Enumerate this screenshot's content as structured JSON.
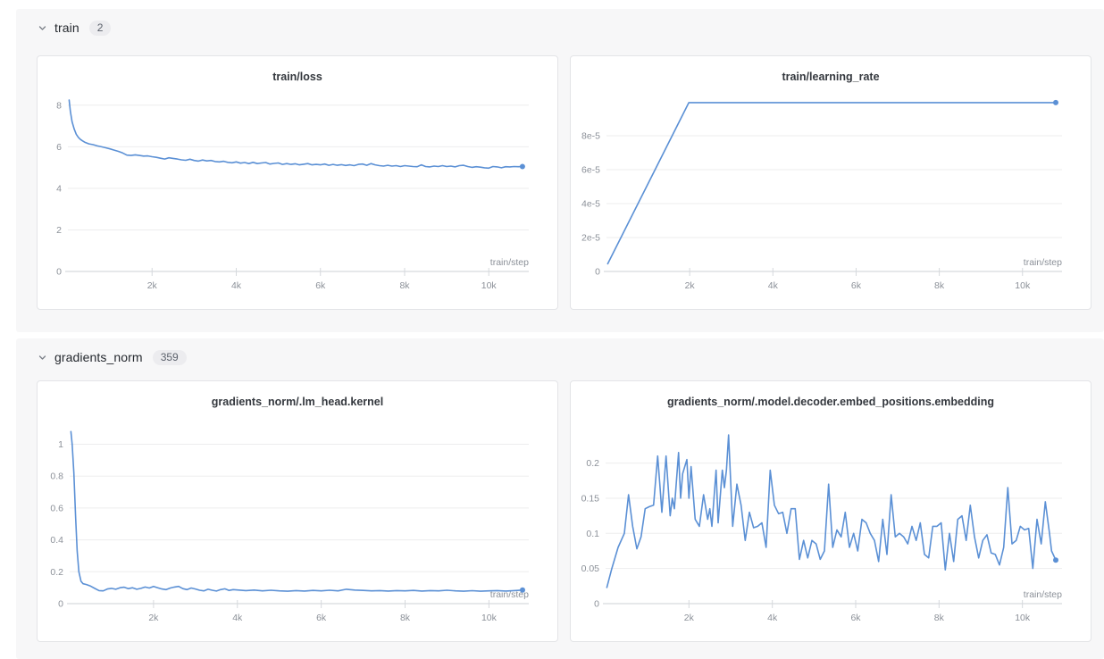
{
  "colors": {
    "line": "#5b90d5",
    "grid": "#ededee",
    "axis": "#ccd0d5",
    "tick": "#d6d9dd",
    "tick_label": "#8b9098",
    "title": "#34383e",
    "panel_bg": "#f7f7f8",
    "card_border": "#e3e4e7",
    "badge_bg": "#ececef",
    "badge_text": "#5b616b",
    "header_text": "#24282e"
  },
  "sections": [
    {
      "label": "train",
      "count": "2",
      "chevron": "chevron-down",
      "charts": [
        0,
        1
      ]
    },
    {
      "label": "gradients_norm",
      "count": "359",
      "chevron": "chevron-down",
      "charts": [
        2,
        3
      ]
    }
  ],
  "chart_data": [
    {
      "type": "line",
      "title": "train/loss",
      "xlabel": "train/step",
      "x_units": "thousands of steps",
      "xlim": [
        0,
        10.95
      ],
      "ylim": [
        0,
        8.55
      ],
      "x_tick_values": [
        2,
        4,
        6,
        8,
        10
      ],
      "x_tick_labels": [
        "2k",
        "4k",
        "6k",
        "8k",
        "10k"
      ],
      "y_tick_values": [
        0,
        2,
        4,
        6,
        8
      ],
      "y_tick_labels": [
        "0",
        "2",
        "4",
        "6",
        "8"
      ],
      "grid": true,
      "end_dot": true,
      "points": [
        [
          0.03,
          8.25
        ],
        [
          0.06,
          7.7
        ],
        [
          0.1,
          7.2
        ],
        [
          0.15,
          6.85
        ],
        [
          0.2,
          6.6
        ],
        [
          0.25,
          6.45
        ],
        [
          0.3,
          6.35
        ],
        [
          0.35,
          6.28
        ],
        [
          0.4,
          6.22
        ],
        [
          0.5,
          6.14
        ],
        [
          0.6,
          6.1
        ],
        [
          0.7,
          6.04
        ],
        [
          0.8,
          6.0
        ],
        [
          0.9,
          5.95
        ],
        [
          1.0,
          5.9
        ],
        [
          1.1,
          5.84
        ],
        [
          1.2,
          5.78
        ],
        [
          1.3,
          5.7
        ],
        [
          1.4,
          5.6
        ],
        [
          1.5,
          5.58
        ],
        [
          1.6,
          5.61
        ],
        [
          1.7,
          5.58
        ],
        [
          1.8,
          5.55
        ],
        [
          1.9,
          5.56
        ],
        [
          2.0,
          5.52
        ],
        [
          2.1,
          5.49
        ],
        [
          2.2,
          5.45
        ],
        [
          2.3,
          5.41
        ],
        [
          2.4,
          5.47
        ],
        [
          2.5,
          5.44
        ],
        [
          2.6,
          5.41
        ],
        [
          2.7,
          5.37
        ],
        [
          2.8,
          5.35
        ],
        [
          2.9,
          5.4
        ],
        [
          3.0,
          5.34
        ],
        [
          3.1,
          5.31
        ],
        [
          3.2,
          5.36
        ],
        [
          3.3,
          5.32
        ],
        [
          3.4,
          5.34
        ],
        [
          3.5,
          5.29
        ],
        [
          3.6,
          5.27
        ],
        [
          3.7,
          5.3
        ],
        [
          3.8,
          5.25
        ],
        [
          3.9,
          5.23
        ],
        [
          4.0,
          5.27
        ],
        [
          4.1,
          5.21
        ],
        [
          4.2,
          5.24
        ],
        [
          4.3,
          5.19
        ],
        [
          4.4,
          5.25
        ],
        [
          4.5,
          5.19
        ],
        [
          4.6,
          5.22
        ],
        [
          4.7,
          5.24
        ],
        [
          4.8,
          5.17
        ],
        [
          4.9,
          5.2
        ],
        [
          5.0,
          5.22
        ],
        [
          5.1,
          5.15
        ],
        [
          5.2,
          5.19
        ],
        [
          5.3,
          5.15
        ],
        [
          5.4,
          5.18
        ],
        [
          5.5,
          5.13
        ],
        [
          5.6,
          5.16
        ],
        [
          5.7,
          5.19
        ],
        [
          5.8,
          5.13
        ],
        [
          5.9,
          5.15
        ],
        [
          6.0,
          5.13
        ],
        [
          6.1,
          5.17
        ],
        [
          6.2,
          5.11
        ],
        [
          6.3,
          5.15
        ],
        [
          6.4,
          5.11
        ],
        [
          6.5,
          5.14
        ],
        [
          6.6,
          5.1
        ],
        [
          6.7,
          5.13
        ],
        [
          6.8,
          5.09
        ],
        [
          6.9,
          5.15
        ],
        [
          7.0,
          5.17
        ],
        [
          7.1,
          5.11
        ],
        [
          7.2,
          5.19
        ],
        [
          7.3,
          5.13
        ],
        [
          7.4,
          5.09
        ],
        [
          7.5,
          5.07
        ],
        [
          7.6,
          5.11
        ],
        [
          7.7,
          5.07
        ],
        [
          7.8,
          5.09
        ],
        [
          7.9,
          5.05
        ],
        [
          8.0,
          5.09
        ],
        [
          8.1,
          5.07
        ],
        [
          8.2,
          5.05
        ],
        [
          8.3,
          5.04
        ],
        [
          8.4,
          5.13
        ],
        [
          8.5,
          5.05
        ],
        [
          8.6,
          5.03
        ],
        [
          8.7,
          5.07
        ],
        [
          8.8,
          5.05
        ],
        [
          8.9,
          5.09
        ],
        [
          9.0,
          5.05
        ],
        [
          9.1,
          5.07
        ],
        [
          9.2,
          5.03
        ],
        [
          9.3,
          5.09
        ],
        [
          9.4,
          5.11
        ],
        [
          9.5,
          5.05
        ],
        [
          9.6,
          5.01
        ],
        [
          9.7,
          5.04
        ],
        [
          9.8,
          5.02
        ],
        [
          9.9,
          4.99
        ],
        [
          10.0,
          4.97
        ],
        [
          10.1,
          5.05
        ],
        [
          10.2,
          5.03
        ],
        [
          10.3,
          4.99
        ],
        [
          10.4,
          5.04
        ],
        [
          10.5,
          5.03
        ],
        [
          10.6,
          5.05
        ],
        [
          10.7,
          5.04
        ],
        [
          10.8,
          5.05
        ]
      ]
    },
    {
      "type": "line",
      "title": "train/learning_rate",
      "xlabel": "train/step",
      "x_units": "thousands of steps",
      "xlim": [
        0,
        10.95
      ],
      "ylim": [
        0,
        0.0001047
      ],
      "x_tick_values": [
        2,
        4,
        6,
        8,
        10
      ],
      "x_tick_labels": [
        "2k",
        "4k",
        "6k",
        "8k",
        "10k"
      ],
      "y_tick_values": [
        0,
        2e-05,
        4e-05,
        6e-05,
        8e-05
      ],
      "y_tick_labels": [
        "0",
        "2e-5",
        "4e-5",
        "6e-5",
        "8e-5"
      ],
      "grid": true,
      "end_dot": true,
      "points": [
        [
          0.03,
          4.5e-06
        ],
        [
          1.98,
          9.95e-05
        ],
        [
          10.8,
          9.95e-05
        ]
      ]
    },
    {
      "type": "line",
      "title": "gradients_norm/.lm_head.kernel",
      "xlabel": "train/step",
      "x_units": "thousands of steps",
      "xlim": [
        0,
        10.95
      ],
      "ylim": [
        0,
        1.16
      ],
      "x_tick_values": [
        2,
        4,
        6,
        8,
        10
      ],
      "x_tick_labels": [
        "2k",
        "4k",
        "6k",
        "8k",
        "10k"
      ],
      "y_tick_values": [
        0,
        0.2,
        0.4,
        0.6,
        0.8,
        1
      ],
      "y_tick_labels": [
        "0",
        "0.2",
        "0.4",
        "0.6",
        "0.8",
        "1"
      ],
      "grid": true,
      "end_dot": true,
      "points": [
        [
          0.03,
          1.08
        ],
        [
          0.06,
          1.0
        ],
        [
          0.1,
          0.82
        ],
        [
          0.14,
          0.55
        ],
        [
          0.18,
          0.33
        ],
        [
          0.22,
          0.2
        ],
        [
          0.27,
          0.14
        ],
        [
          0.32,
          0.125
        ],
        [
          0.4,
          0.12
        ],
        [
          0.5,
          0.11
        ],
        [
          0.6,
          0.095
        ],
        [
          0.7,
          0.082
        ],
        [
          0.8,
          0.08
        ],
        [
          0.9,
          0.092
        ],
        [
          1.0,
          0.096
        ],
        [
          1.1,
          0.09
        ],
        [
          1.2,
          0.1
        ],
        [
          1.3,
          0.103
        ],
        [
          1.4,
          0.094
        ],
        [
          1.5,
          0.1
        ],
        [
          1.6,
          0.09
        ],
        [
          1.7,
          0.096
        ],
        [
          1.8,
          0.104
        ],
        [
          1.9,
          0.098
        ],
        [
          2.0,
          0.108
        ],
        [
          2.1,
          0.1
        ],
        [
          2.2,
          0.092
        ],
        [
          2.3,
          0.088
        ],
        [
          2.4,
          0.098
        ],
        [
          2.5,
          0.104
        ],
        [
          2.6,
          0.108
        ],
        [
          2.7,
          0.094
        ],
        [
          2.8,
          0.088
        ],
        [
          2.9,
          0.098
        ],
        [
          3.0,
          0.092
        ],
        [
          3.1,
          0.084
        ],
        [
          3.2,
          0.08
        ],
        [
          3.3,
          0.09
        ],
        [
          3.4,
          0.084
        ],
        [
          3.5,
          0.079
        ],
        [
          3.6,
          0.088
        ],
        [
          3.7,
          0.093
        ],
        [
          3.8,
          0.083
        ],
        [
          3.9,
          0.088
        ],
        [
          4.0,
          0.086
        ],
        [
          4.2,
          0.082
        ],
        [
          4.4,
          0.085
        ],
        [
          4.6,
          0.08
        ],
        [
          4.8,
          0.084
        ],
        [
          5.0,
          0.08
        ],
        [
          5.2,
          0.078
        ],
        [
          5.4,
          0.082
        ],
        [
          5.6,
          0.079
        ],
        [
          5.8,
          0.083
        ],
        [
          6.0,
          0.08
        ],
        [
          6.2,
          0.084
        ],
        [
          6.4,
          0.08
        ],
        [
          6.6,
          0.09
        ],
        [
          6.8,
          0.085
        ],
        [
          7.0,
          0.083
        ],
        [
          7.2,
          0.08
        ],
        [
          7.4,
          0.082
        ],
        [
          7.6,
          0.079
        ],
        [
          7.8,
          0.082
        ],
        [
          8.0,
          0.08
        ],
        [
          8.2,
          0.083
        ],
        [
          8.4,
          0.079
        ],
        [
          8.6,
          0.082
        ],
        [
          8.8,
          0.08
        ],
        [
          9.0,
          0.084
        ],
        [
          9.2,
          0.08
        ],
        [
          9.4,
          0.078
        ],
        [
          9.6,
          0.081
        ],
        [
          9.8,
          0.078
        ],
        [
          10.0,
          0.08
        ],
        [
          10.2,
          0.082
        ],
        [
          10.4,
          0.079
        ],
        [
          10.6,
          0.082
        ],
        [
          10.8,
          0.085
        ]
      ]
    },
    {
      "type": "line",
      "title": "gradients_norm/.model.decoder.embed_positions.embedding",
      "xlabel": "train/step",
      "x_units": "thousands of steps",
      "xlim": [
        0,
        10.95
      ],
      "ylim": [
        0,
        0.263
      ],
      "x_tick_values": [
        2,
        4,
        6,
        8,
        10
      ],
      "x_tick_labels": [
        "2k",
        "4k",
        "6k",
        "8k",
        "10k"
      ],
      "y_tick_values": [
        0,
        0.05,
        0.1,
        0.15,
        0.2
      ],
      "y_tick_labels": [
        "0",
        "0.05",
        "0.1",
        "0.15",
        "0.2"
      ],
      "grid": true,
      "end_dot": true,
      "points": [
        [
          0.03,
          0.023
        ],
        [
          0.15,
          0.05
        ],
        [
          0.3,
          0.08
        ],
        [
          0.45,
          0.1
        ],
        [
          0.55,
          0.155
        ],
        [
          0.65,
          0.11
        ],
        [
          0.75,
          0.078
        ],
        [
          0.85,
          0.095
        ],
        [
          0.95,
          0.135
        ],
        [
          1.05,
          0.138
        ],
        [
          1.15,
          0.14
        ],
        [
          1.25,
          0.21
        ],
        [
          1.3,
          0.17
        ],
        [
          1.35,
          0.13
        ],
        [
          1.45,
          0.21
        ],
        [
          1.55,
          0.125
        ],
        [
          1.6,
          0.15
        ],
        [
          1.65,
          0.135
        ],
        [
          1.75,
          0.215
        ],
        [
          1.8,
          0.15
        ],
        [
          1.85,
          0.185
        ],
        [
          1.95,
          0.205
        ],
        [
          2.0,
          0.15
        ],
        [
          2.05,
          0.195
        ],
        [
          2.15,
          0.12
        ],
        [
          2.25,
          0.11
        ],
        [
          2.35,
          0.155
        ],
        [
          2.45,
          0.12
        ],
        [
          2.5,
          0.135
        ],
        [
          2.55,
          0.11
        ],
        [
          2.65,
          0.19
        ],
        [
          2.7,
          0.115
        ],
        [
          2.8,
          0.19
        ],
        [
          2.85,
          0.165
        ],
        [
          2.9,
          0.19
        ],
        [
          2.95,
          0.24
        ],
        [
          3.05,
          0.11
        ],
        [
          3.15,
          0.17
        ],
        [
          3.25,
          0.14
        ],
        [
          3.35,
          0.09
        ],
        [
          3.45,
          0.13
        ],
        [
          3.55,
          0.108
        ],
        [
          3.65,
          0.11
        ],
        [
          3.75,
          0.115
        ],
        [
          3.85,
          0.08
        ],
        [
          3.95,
          0.19
        ],
        [
          4.05,
          0.14
        ],
        [
          4.15,
          0.128
        ],
        [
          4.25,
          0.13
        ],
        [
          4.35,
          0.1
        ],
        [
          4.45,
          0.135
        ],
        [
          4.55,
          0.135
        ],
        [
          4.65,
          0.063
        ],
        [
          4.75,
          0.09
        ],
        [
          4.85,
          0.065
        ],
        [
          4.95,
          0.09
        ],
        [
          5.05,
          0.085
        ],
        [
          5.15,
          0.063
        ],
        [
          5.25,
          0.075
        ],
        [
          5.35,
          0.17
        ],
        [
          5.45,
          0.08
        ],
        [
          5.55,
          0.105
        ],
        [
          5.65,
          0.095
        ],
        [
          5.75,
          0.13
        ],
        [
          5.85,
          0.08
        ],
        [
          5.95,
          0.1
        ],
        [
          6.05,
          0.075
        ],
        [
          6.15,
          0.12
        ],
        [
          6.25,
          0.115
        ],
        [
          6.35,
          0.1
        ],
        [
          6.45,
          0.09
        ],
        [
          6.55,
          0.06
        ],
        [
          6.65,
          0.12
        ],
        [
          6.75,
          0.07
        ],
        [
          6.85,
          0.155
        ],
        [
          6.95,
          0.095
        ],
        [
          7.05,
          0.1
        ],
        [
          7.15,
          0.095
        ],
        [
          7.25,
          0.085
        ],
        [
          7.35,
          0.11
        ],
        [
          7.45,
          0.09
        ],
        [
          7.55,
          0.115
        ],
        [
          7.65,
          0.07
        ],
        [
          7.75,
          0.065
        ],
        [
          7.85,
          0.11
        ],
        [
          7.95,
          0.11
        ],
        [
          8.05,
          0.115
        ],
        [
          8.15,
          0.048
        ],
        [
          8.25,
          0.1
        ],
        [
          8.35,
          0.06
        ],
        [
          8.45,
          0.12
        ],
        [
          8.55,
          0.125
        ],
        [
          8.65,
          0.09
        ],
        [
          8.75,
          0.14
        ],
        [
          8.85,
          0.095
        ],
        [
          8.95,
          0.065
        ],
        [
          9.05,
          0.09
        ],
        [
          9.15,
          0.098
        ],
        [
          9.25,
          0.072
        ],
        [
          9.35,
          0.07
        ],
        [
          9.45,
          0.055
        ],
        [
          9.55,
          0.08
        ],
        [
          9.65,
          0.165
        ],
        [
          9.75,
          0.085
        ],
        [
          9.85,
          0.09
        ],
        [
          9.95,
          0.11
        ],
        [
          10.05,
          0.105
        ],
        [
          10.15,
          0.107
        ],
        [
          10.25,
          0.05
        ],
        [
          10.35,
          0.12
        ],
        [
          10.45,
          0.085
        ],
        [
          10.55,
          0.145
        ],
        [
          10.65,
          0.1
        ],
        [
          10.7,
          0.075
        ],
        [
          10.8,
          0.062
        ]
      ]
    }
  ]
}
